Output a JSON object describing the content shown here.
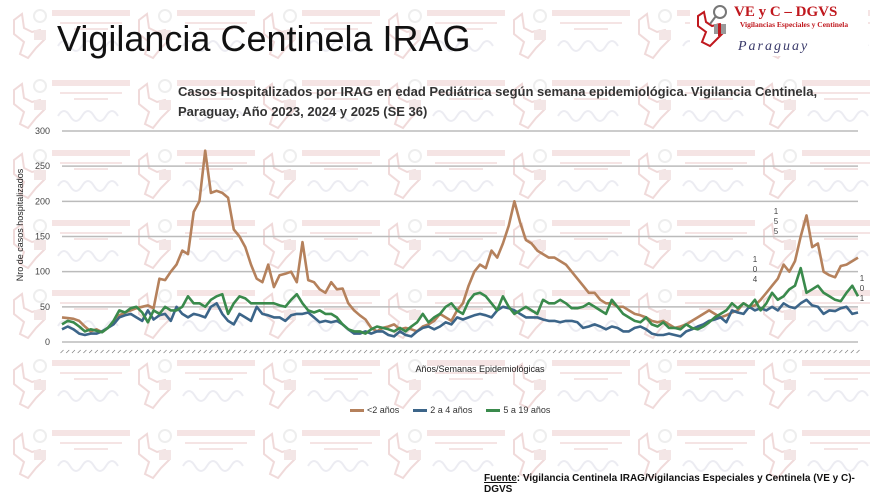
{
  "slide_title": "Vigilancia Centinela IRAG",
  "logo": {
    "line1": "VE y C – DGVS",
    "line2": "Vigilancias Especiales y Centinela",
    "line3": "Paraguay"
  },
  "source": {
    "label": "Fuente",
    "text": ": Vigilancia  Centinela IRAG/Vigilancias Especiales y Centinela (VE y C)-DGVS"
  },
  "chart_data": {
    "type": "line",
    "title": "Casos Hospitalizados por IRAG en edad Pediátrica según semana epidemiológica. Vigilancia Centinela, Paraguay, Año 2023, 2024 y 2025 (SE 36)",
    "xlabel": "Años/Semanas Epidemiológicas",
    "ylabel": "Nro de casos hospitalizados",
    "ylim": [
      0,
      300
    ],
    "yticks": [
      "0",
      "50",
      "100",
      "150",
      "200",
      "250",
      "300"
    ],
    "grid": true,
    "legend_position": "bottom",
    "annotations": [
      "104",
      "155",
      "101"
    ],
    "series": [
      {
        "name": "<2  años",
        "color": "#b5815c",
        "values": [
          35,
          34,
          33,
          30,
          22,
          15,
          18,
          14,
          20,
          28,
          38,
          42,
          45,
          48,
          50,
          52,
          48,
          90,
          88,
          100,
          110,
          130,
          125,
          185,
          200,
          272,
          212,
          215,
          212,
          205,
          160,
          150,
          135,
          110,
          90,
          85,
          110,
          78,
          95,
          97,
          100,
          85,
          142,
          88,
          85,
          75,
          70,
          85,
          75,
          76,
          55,
          45,
          38,
          32,
          20,
          15,
          20,
          22,
          25,
          18,
          20,
          18,
          15,
          22,
          25,
          30,
          40,
          35,
          30,
          45,
          55,
          80,
          100,
          110,
          105,
          130,
          120,
          140,
          165,
          200,
          170,
          145,
          140,
          130,
          125,
          120,
          120,
          115,
          110,
          100,
          90,
          80,
          70,
          70,
          60,
          55,
          55,
          50,
          50,
          45,
          40,
          38,
          35,
          30,
          28,
          30,
          25,
          20,
          22,
          25,
          30,
          35,
          40,
          45,
          40,
          35,
          38,
          42,
          45,
          55,
          50,
          52,
          60,
          70,
          80,
          90,
          110,
          100,
          115,
          150,
          180,
          135,
          140,
          100,
          95,
          92,
          108,
          110,
          115,
          120
        ]
      },
      {
        "name": "2 a 4 años",
        "color": "#3c6589",
        "values": [
          18,
          22,
          18,
          12,
          10,
          12,
          12,
          15,
          20,
          25,
          35,
          38,
          40,
          35,
          30,
          45,
          32,
          38,
          40,
          30,
          50,
          40,
          35,
          40,
          38,
          35,
          50,
          55,
          40,
          30,
          25,
          40,
          35,
          30,
          50,
          40,
          38,
          35,
          35,
          30,
          38,
          40,
          40,
          42,
          35,
          28,
          30,
          28,
          30,
          25,
          18,
          12,
          12,
          15,
          12,
          15,
          15,
          10,
          8,
          15,
          10,
          8,
          15,
          20,
          22,
          18,
          22,
          28,
          25,
          35,
          32,
          35,
          38,
          40,
          38,
          35,
          45,
          50,
          48,
          45,
          40,
          35,
          35,
          35,
          32,
          30,
          30,
          28,
          30,
          30,
          28,
          20,
          22,
          25,
          22,
          18,
          22,
          20,
          15,
          15,
          20,
          22,
          18,
          12,
          10,
          10,
          12,
          10,
          8,
          15,
          18,
          22,
          25,
          30,
          32,
          35,
          28,
          45,
          42,
          40,
          50,
          45,
          48,
          45,
          50,
          45,
          55,
          50,
          48,
          55,
          60,
          52,
          50,
          40,
          45,
          44,
          48,
          50,
          40,
          42
        ]
      },
      {
        "name": "5 a 19 años",
        "color": "#3a8a4c",
        "values": [
          25,
          30,
          28,
          22,
          15,
          18,
          16,
          14,
          20,
          30,
          45,
          42,
          48,
          50,
          42,
          28,
          45,
          40,
          50,
          45,
          45,
          50,
          65,
          55,
          55,
          50,
          60,
          65,
          68,
          40,
          55,
          65,
          62,
          55,
          55,
          55,
          55,
          55,
          52,
          50,
          60,
          68,
          55,
          45,
          42,
          45,
          40,
          40,
          35,
          25,
          18,
          15,
          15,
          12,
          18,
          22,
          20,
          18,
          15,
          20,
          15,
          22,
          28,
          40,
          28,
          35,
          40,
          50,
          55,
          45,
          40,
          58,
          68,
          70,
          65,
          55,
          45,
          65,
          50,
          40,
          45,
          50,
          45,
          40,
          60,
          55,
          55,
          60,
          55,
          48,
          48,
          50,
          55,
          50,
          45,
          40,
          60,
          50,
          40,
          35,
          30,
          28,
          35,
          25,
          22,
          28,
          20,
          20,
          18,
          25,
          20,
          18,
          22,
          28,
          35,
          40,
          45,
          55,
          48,
          55,
          50,
          60,
          45,
          55,
          70,
          60,
          65,
          75,
          80,
          105,
          70,
          75,
          80,
          70,
          65,
          60,
          58,
          70,
          80,
          65
        ]
      }
    ]
  }
}
